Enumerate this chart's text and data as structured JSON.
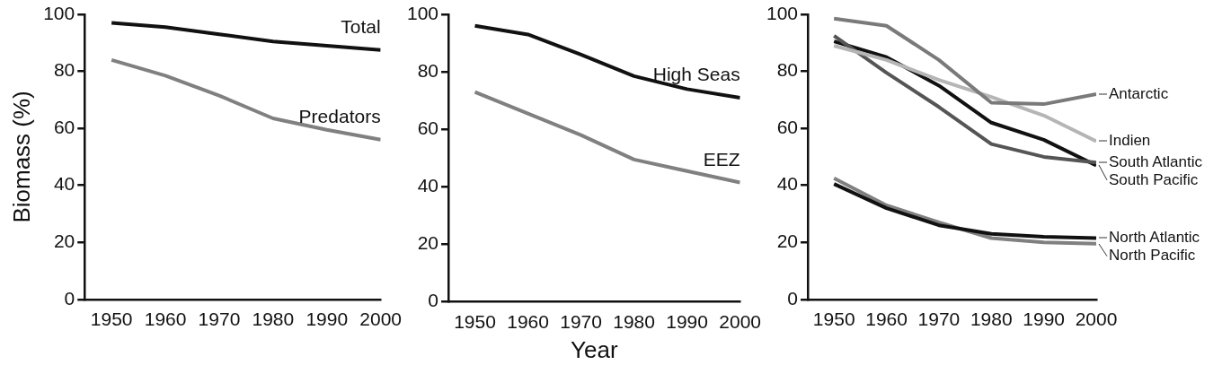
{
  "chart_data": [
    {
      "type": "line",
      "ylabel": "Biomass (%)",
      "x": [
        1950,
        1960,
        1970,
        1980,
        1990,
        2000
      ],
      "xlim": [
        1945,
        2000
      ],
      "xticks": [
        1950,
        1960,
        1970,
        1980,
        1990,
        2000
      ],
      "ylim": [
        0,
        100
      ],
      "yticks": [
        0,
        20,
        40,
        60,
        80,
        100
      ],
      "grid": false,
      "legend": false,
      "marker": "none",
      "series": [
        {
          "name": "Total",
          "color": "#111111",
          "values": [
            97,
            95.5,
            93,
            90.5,
            89,
            87.5
          ]
        },
        {
          "name": "Predators",
          "color": "#808080",
          "values": [
            84,
            78.5,
            71.5,
            63.5,
            59.5,
            56
          ]
        }
      ]
    },
    {
      "type": "line",
      "xlabel": "Year",
      "x": [
        1950,
        1960,
        1970,
        1980,
        1990,
        2000
      ],
      "xlim": [
        1945,
        2000
      ],
      "xticks": [
        1950,
        1960,
        1970,
        1980,
        1990,
        2000
      ],
      "ylim": [
        0,
        100
      ],
      "yticks": [
        0,
        20,
        40,
        60,
        80,
        100
      ],
      "grid": false,
      "legend": false,
      "marker": "none",
      "series": [
        {
          "name": "High Seas",
          "color": "#111111",
          "values": [
            96,
            93,
            86,
            78.5,
            74,
            71
          ]
        },
        {
          "name": "EEZ",
          "color": "#808080",
          "values": [
            73,
            65.5,
            58,
            49.5,
            45.5,
            41.5
          ]
        }
      ]
    },
    {
      "type": "line",
      "x": [
        1950,
        1960,
        1970,
        1980,
        1990,
        2000
      ],
      "xlim": [
        1945,
        2000
      ],
      "xticks": [
        1950,
        1960,
        1970,
        1980,
        1990,
        2000
      ],
      "ylim": [
        0,
        100
      ],
      "yticks": [
        0,
        20,
        40,
        60,
        80,
        100
      ],
      "grid": false,
      "legend": false,
      "marker": "none",
      "series": [
        {
          "name": "Antarctic",
          "color": "#7a7a7a",
          "values": [
            98.5,
            96,
            84,
            69,
            68.5,
            72
          ]
        },
        {
          "name": "Indien",
          "color": "#b5b5b5",
          "values": [
            89,
            84,
            77,
            71,
            64.5,
            55.5
          ]
        },
        {
          "name": "South Atlantic",
          "color": "#555555",
          "values": [
            92.5,
            79.5,
            67.5,
            54.5,
            50,
            48
          ]
        },
        {
          "name": "South Pacific",
          "color": "#111111",
          "values": [
            90.5,
            85,
            75,
            62,
            56,
            47
          ]
        },
        {
          "name": "North Atlantic",
          "color": "#111111",
          "values": [
            40.5,
            32,
            26,
            23,
            22,
            21.5
          ]
        },
        {
          "name": "North Pacific",
          "color": "#808080",
          "values": [
            42.5,
            33,
            27,
            21.5,
            20,
            19.5
          ]
        }
      ]
    }
  ]
}
